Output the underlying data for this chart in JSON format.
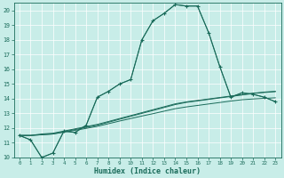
{
  "xlabel": "Humidex (Indice chaleur)",
  "xlim": [
    -0.5,
    23.5
  ],
  "ylim": [
    10,
    20.5
  ],
  "yticks": [
    10,
    11,
    12,
    13,
    14,
    15,
    16,
    17,
    18,
    19,
    20
  ],
  "xticks": [
    0,
    1,
    2,
    3,
    4,
    5,
    6,
    7,
    8,
    9,
    10,
    11,
    12,
    13,
    14,
    15,
    16,
    17,
    18,
    19,
    20,
    21,
    22,
    23
  ],
  "bg_color": "#c8ede8",
  "grid_color": "#a0d8d0",
  "line_color": "#1a6b5a",
  "line1_x": [
    0,
    1,
    2,
    3,
    4,
    5,
    6,
    7,
    8,
    9,
    10,
    11,
    12,
    13,
    14,
    15,
    16,
    17,
    18,
    19,
    20,
    21,
    22,
    23
  ],
  "line1_y": [
    11.5,
    11.2,
    10.0,
    10.3,
    11.8,
    11.7,
    12.2,
    14.1,
    14.5,
    15.0,
    15.3,
    18.0,
    19.3,
    19.8,
    20.4,
    20.3,
    20.3,
    18.5,
    16.2,
    14.1,
    14.4,
    14.3,
    14.1,
    13.8
  ],
  "line2_x": [
    0,
    1,
    2,
    3,
    4,
    5,
    6,
    7,
    8,
    9,
    10,
    11,
    12,
    13,
    14,
    15,
    16,
    17,
    18,
    19,
    20,
    21,
    22,
    23
  ],
  "line2_y": [
    11.5,
    11.2,
    10.0,
    10.3,
    11.8,
    11.7,
    12.2,
    14.1,
    14.5,
    15.0,
    15.3,
    18.0,
    19.3,
    19.8,
    20.4,
    20.3,
    20.3,
    18.5,
    16.2,
    14.1,
    14.4,
    14.3,
    14.1,
    13.8
  ],
  "line3_x": [
    0,
    1,
    2,
    3,
    4,
    5,
    6,
    7,
    8,
    9,
    10,
    11,
    12,
    13,
    14,
    15,
    16,
    17,
    18,
    19,
    20,
    21,
    22,
    23
  ],
  "line3_y": [
    11.5,
    11.5,
    11.55,
    11.6,
    11.75,
    11.9,
    12.05,
    12.2,
    12.4,
    12.6,
    12.8,
    13.0,
    13.2,
    13.4,
    13.6,
    13.75,
    13.85,
    13.95,
    14.05,
    14.15,
    14.25,
    14.35,
    14.45,
    14.5
  ],
  "line4_x": [
    0,
    1,
    2,
    3,
    4,
    5,
    6,
    7,
    8,
    9,
    10,
    11,
    12,
    13,
    14,
    15,
    16,
    17,
    18,
    19,
    20,
    21,
    22,
    23
  ],
  "line4_y": [
    11.5,
    11.5,
    11.6,
    11.65,
    11.8,
    11.95,
    12.1,
    12.25,
    12.45,
    12.65,
    12.85,
    13.05,
    13.25,
    13.45,
    13.65,
    13.78,
    13.88,
    13.98,
    14.08,
    14.18,
    14.28,
    14.38,
    14.42,
    14.48
  ],
  "line5_x": [
    0,
    1,
    2,
    3,
    4,
    5,
    6,
    7,
    8,
    9,
    10,
    11,
    12,
    13,
    14,
    15,
    16,
    17,
    18,
    19,
    20,
    21,
    22,
    23
  ],
  "line5_y": [
    11.5,
    11.5,
    11.55,
    11.6,
    11.72,
    11.85,
    11.98,
    12.12,
    12.3,
    12.48,
    12.65,
    12.82,
    12.98,
    13.15,
    13.32,
    13.44,
    13.54,
    13.64,
    13.74,
    13.84,
    13.93,
    13.98,
    14.02,
    14.06
  ]
}
